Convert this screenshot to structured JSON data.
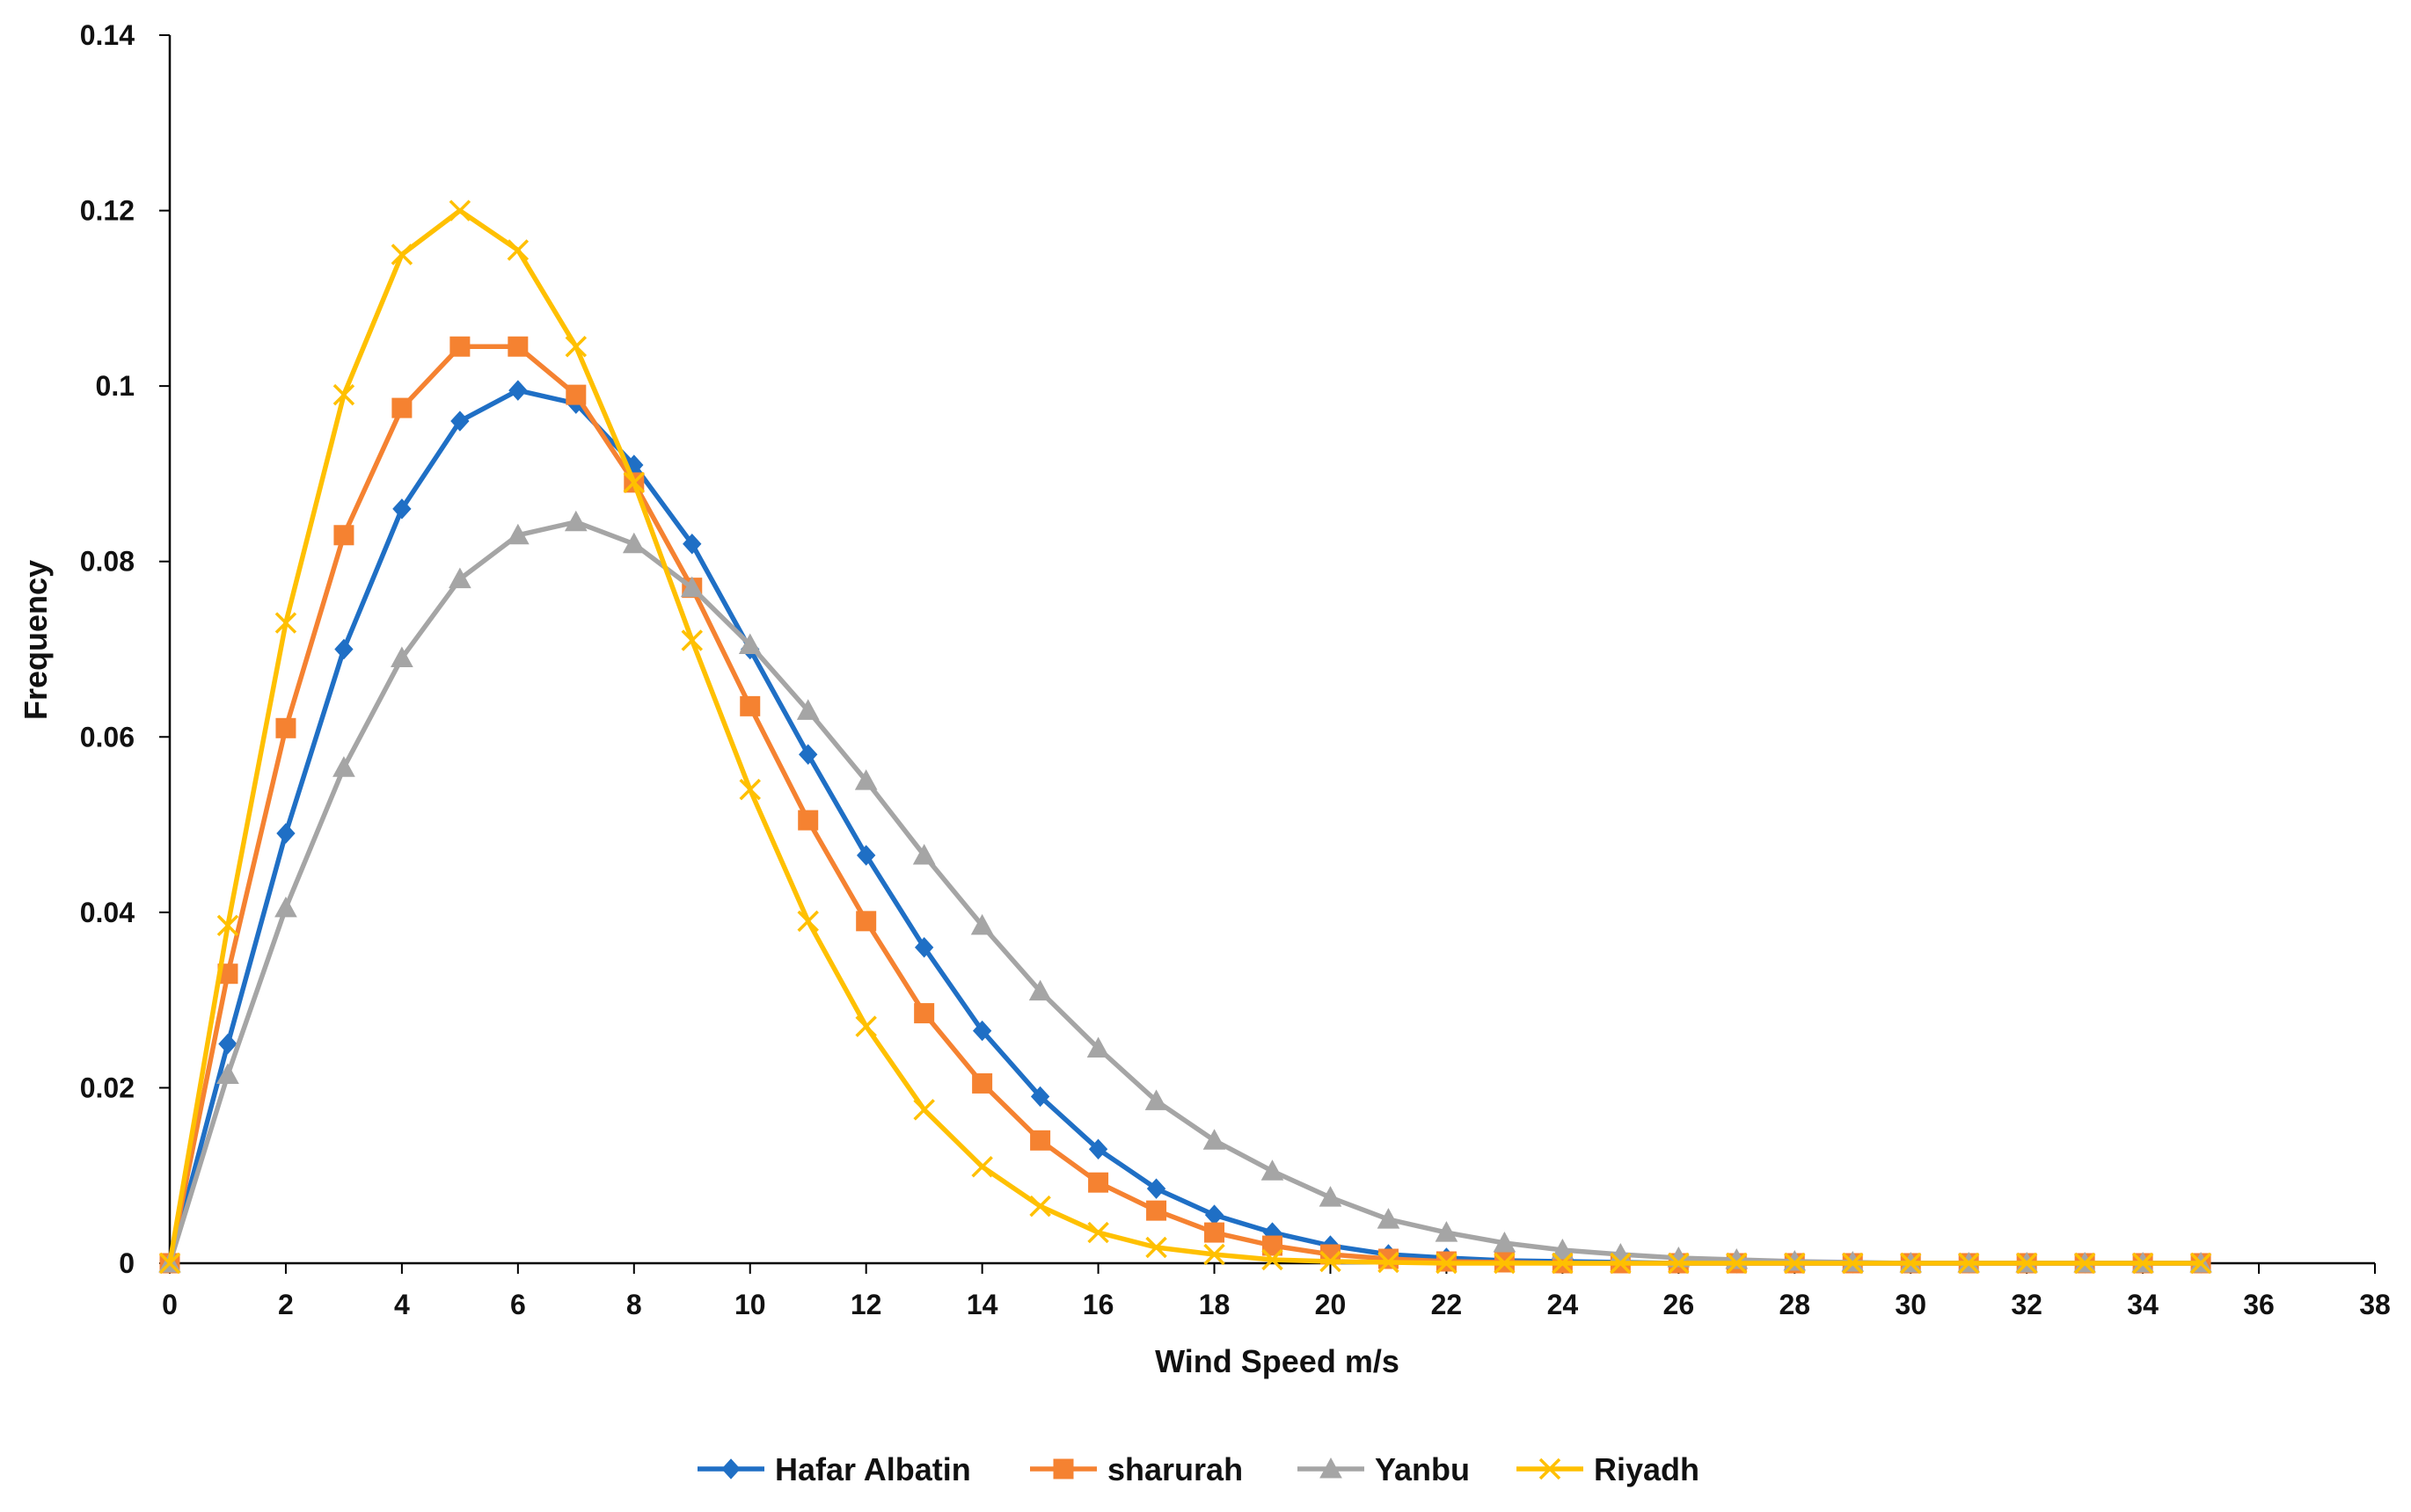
{
  "chart_data": {
    "type": "line",
    "title": "",
    "xlabel": "Wind Speed m/s",
    "ylabel": "Frequency",
    "xlim": [
      0,
      38
    ],
    "ylim": [
      0,
      0.14
    ],
    "x_ticks": [
      "0",
      "2",
      "4",
      "6",
      "8",
      "10",
      "12",
      "14",
      "16",
      "18",
      "20",
      "22",
      "24",
      "26",
      "28",
      "30",
      "32",
      "34",
      "36",
      "38"
    ],
    "y_ticks": [
      "0",
      "0.02",
      "0.04",
      "0.06",
      "0.08",
      "0.1",
      "0.12",
      "0.14"
    ],
    "grid": false,
    "legend_position": "bottom",
    "x": [
      0,
      1,
      2,
      3,
      4,
      5,
      6,
      7,
      8,
      9,
      10,
      11,
      12,
      13,
      14,
      15,
      16,
      17,
      18,
      19,
      20,
      21,
      22,
      23,
      24,
      25,
      26,
      27,
      28,
      29,
      30,
      31,
      32,
      33,
      34,
      35
    ],
    "series": [
      {
        "name": "Hafar Albatin",
        "color": "#1F6FC5",
        "marker": "diamond",
        "values": [
          0,
          0.025,
          0.049,
          0.07,
          0.086,
          0.096,
          0.0995,
          0.098,
          0.091,
          0.082,
          0.07,
          0.058,
          0.0465,
          0.036,
          0.0265,
          0.019,
          0.013,
          0.0085,
          0.0055,
          0.0035,
          0.002,
          0.001,
          0.0006,
          0.0003,
          0.0002,
          0.0001,
          0,
          0,
          0,
          0,
          0,
          0,
          0,
          0,
          0,
          0
        ]
      },
      {
        "name": "sharurah",
        "color": "#F58231",
        "marker": "square",
        "values": [
          0,
          0.033,
          0.061,
          0.083,
          0.0975,
          0.1045,
          0.1045,
          0.099,
          0.089,
          0.077,
          0.0635,
          0.0505,
          0.039,
          0.0285,
          0.0205,
          0.014,
          0.0092,
          0.006,
          0.0035,
          0.002,
          0.001,
          0.0005,
          0.0002,
          0.0001,
          0,
          0,
          0,
          0,
          0,
          0,
          0,
          0,
          0,
          0,
          0,
          0
        ]
      },
      {
        "name": "Yanbu",
        "color": "#A5A5A5",
        "marker": "triangle",
        "values": [
          0,
          0.0215,
          0.0405,
          0.0565,
          0.069,
          0.078,
          0.083,
          0.0845,
          0.082,
          0.077,
          0.0705,
          0.063,
          0.055,
          0.0465,
          0.0385,
          0.031,
          0.0245,
          0.0185,
          0.014,
          0.0105,
          0.0075,
          0.005,
          0.0035,
          0.0023,
          0.0015,
          0.001,
          0.0006,
          0.0004,
          0.0002,
          0.0001,
          0,
          0,
          0,
          0,
          0,
          0
        ]
      },
      {
        "name": "Riyadh",
        "color": "#FFC000",
        "marker": "x",
        "values": [
          0,
          0.0385,
          0.073,
          0.099,
          0.115,
          0.12,
          0.1155,
          0.1045,
          0.089,
          0.071,
          0.054,
          0.039,
          0.027,
          0.0175,
          0.011,
          0.0065,
          0.0035,
          0.0018,
          0.001,
          0.0004,
          0.0002,
          0.0001,
          0,
          0,
          0,
          0,
          0,
          0,
          0,
          0,
          0,
          0,
          0,
          0,
          0,
          0
        ]
      }
    ]
  }
}
